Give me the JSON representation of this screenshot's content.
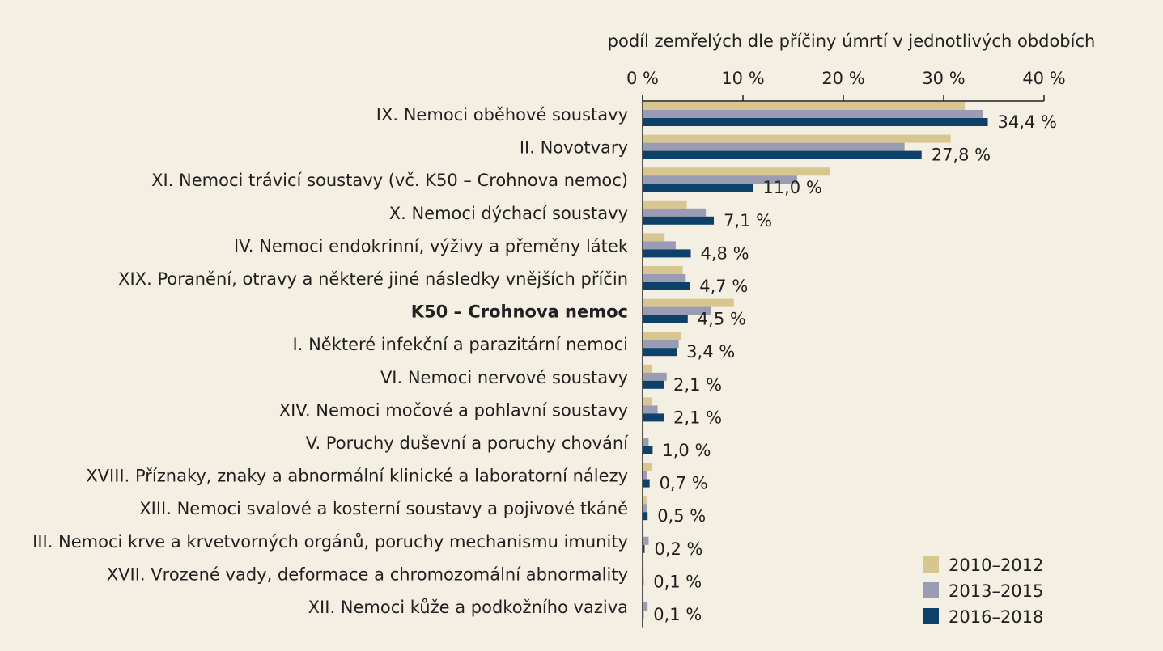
{
  "chart_data": {
    "type": "bar",
    "orientation": "horizontal",
    "title": "",
    "xlabel": "podíl zemřelých dle příčiny úmrtí v jednotlivých obdobích",
    "ylabel": "",
    "xlim": [
      0,
      40
    ],
    "xticks": [
      0,
      10,
      20,
      30,
      40
    ],
    "xtick_labels": [
      "0 %",
      "10 %",
      "20 %",
      "30 %",
      "40 %"
    ],
    "xaxis_position": "top",
    "grid": false,
    "legend_position": "bottom-right",
    "categories": [
      "IX. Nemoci oběhové soustavy",
      "II. Novotvary",
      "XI. Nemoci trávicí soustavy (vč. K50 – Crohnova nemoc)",
      "X. Nemoci dýchací soustavy",
      "IV. Nemoci endokrinní, výživy a přeměny látek",
      "XIX. Poranění, otravy a některé jiné následky vnějších příčin",
      "K50 – Crohnova nemoc",
      "I. Některé infekční a parazitární nemoci",
      "VI. Nemoci nervové soustavy",
      "XIV. Nemoci močové a pohlavní soustavy",
      "V. Poruchy duševní a poruchy chování",
      "XVIII. Příznaky, znaky a abnormální klinické a laboratorní nálezy",
      "XIII. Nemoci svalové a kosterní soustavy a pojivové tkáně",
      "III. Nemoci krve a krvetvorných orgánů, poruchy mechanismu imunity",
      "XVII. Vrozené vady, deformace a chromozomální abnormality",
      "XII. Nemoci kůže a podkožního vaziva"
    ],
    "bold_categories": [
      "K50 – Crohnova nemoc"
    ],
    "series": [
      {
        "name": "2010–2012",
        "color": "#d8c690",
        "values": [
          32.1,
          30.7,
          18.7,
          4.4,
          2.2,
          4.0,
          9.1,
          3.8,
          0.9,
          0.9,
          0.1,
          0.9,
          0.4,
          0.1,
          0.1,
          0.1
        ]
      },
      {
        "name": "2013–2015",
        "color": "#9a9cb3",
        "values": [
          33.9,
          26.1,
          15.4,
          6.3,
          3.3,
          4.3,
          6.8,
          3.6,
          2.4,
          1.5,
          0.6,
          0.4,
          0.4,
          0.6,
          0.1,
          0.5
        ]
      },
      {
        "name": "2016–2018",
        "color": "#0e4169",
        "values": [
          34.4,
          27.8,
          11.0,
          7.1,
          4.8,
          4.7,
          4.5,
          3.4,
          2.1,
          2.1,
          1.0,
          0.7,
          0.5,
          0.2,
          0.1,
          0.1
        ]
      }
    ],
    "data_labels": [
      "34,4 %",
      "27,8 %",
      "11,0 %",
      "7,1 %",
      "4,8 %",
      "4,7 %",
      "4,5 %",
      "3,4 %",
      "2,1 %",
      "2,1 %",
      "1,0 %",
      "0,7 %",
      "0,5 %",
      "0,2 %",
      "0,1 %",
      "0,1 %"
    ]
  }
}
